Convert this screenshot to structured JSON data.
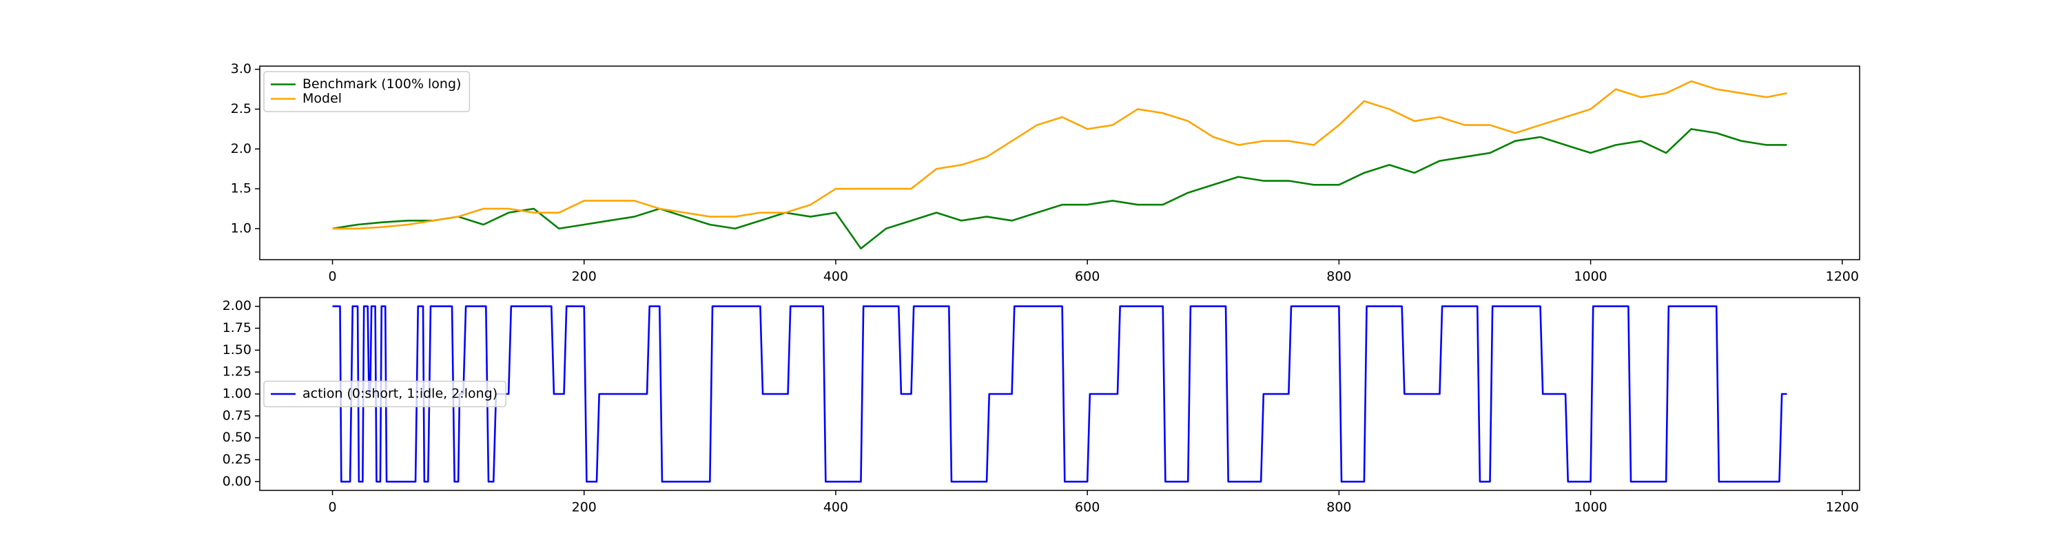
{
  "chart_data": [
    {
      "type": "line",
      "legend": "upper left",
      "x": [
        0,
        20,
        40,
        60,
        80,
        100,
        120,
        140,
        160,
        180,
        200,
        220,
        240,
        260,
        280,
        300,
        320,
        340,
        360,
        380,
        400,
        420,
        440,
        460,
        480,
        500,
        520,
        540,
        560,
        580,
        600,
        620,
        640,
        660,
        680,
        700,
        720,
        740,
        760,
        780,
        800,
        820,
        840,
        860,
        880,
        900,
        920,
        940,
        960,
        980,
        1000,
        1020,
        1040,
        1060,
        1080,
        1100,
        1120,
        1140,
        1156
      ],
      "series": [
        {
          "name": "Benchmark (100% long)",
          "color": "#008000",
          "values": [
            1.0,
            1.05,
            1.08,
            1.1,
            1.1,
            1.15,
            1.05,
            1.2,
            1.25,
            1.0,
            1.05,
            1.1,
            1.15,
            1.25,
            1.15,
            1.05,
            1.0,
            1.1,
            1.2,
            1.15,
            1.2,
            0.75,
            1.0,
            1.1,
            1.2,
            1.1,
            1.15,
            1.1,
            1.2,
            1.3,
            1.3,
            1.35,
            1.3,
            1.3,
            1.45,
            1.55,
            1.65,
            1.6,
            1.6,
            1.55,
            1.55,
            1.7,
            1.8,
            1.7,
            1.85,
            1.9,
            1.95,
            2.1,
            2.15,
            2.05,
            1.95,
            2.05,
            2.1,
            1.95,
            2.25,
            2.2,
            2.1,
            2.05,
            2.05
          ]
        },
        {
          "name": "Model",
          "color": "#ffa500",
          "values": [
            1.0,
            1.0,
            1.02,
            1.05,
            1.1,
            1.15,
            1.25,
            1.25,
            1.2,
            1.2,
            1.35,
            1.35,
            1.35,
            1.25,
            1.2,
            1.15,
            1.15,
            1.2,
            1.2,
            1.3,
            1.5,
            1.5,
            1.5,
            1.5,
            1.75,
            1.8,
            1.9,
            2.1,
            2.3,
            2.4,
            2.25,
            2.3,
            2.5,
            2.45,
            2.35,
            2.15,
            2.05,
            2.1,
            2.1,
            2.05,
            2.3,
            2.6,
            2.5,
            2.35,
            2.4,
            2.3,
            2.3,
            2.2,
            2.3,
            2.4,
            2.5,
            2.75,
            2.65,
            2.7,
            2.85,
            2.75,
            2.7,
            2.65,
            2.7
          ]
        }
      ],
      "xlim": [
        -57.8,
        1213.8
      ],
      "xticks": [
        0,
        200,
        400,
        600,
        800,
        1000,
        1200
      ],
      "ylim": [
        0.61,
        3.04
      ],
      "yticks": [
        {
          "value": 1,
          "label": "1.0"
        },
        1.5,
        {
          "value": 2,
          "label": "2.0"
        },
        2.5,
        {
          "value": 3,
          "label": "3.0"
        }
      ]
    },
    {
      "type": "line",
      "legend": "center left",
      "x": [
        0,
        6,
        7,
        14,
        16,
        20,
        21,
        24,
        25,
        28,
        29,
        30,
        31,
        34,
        35,
        38,
        39,
        42,
        43,
        66,
        68,
        72,
        73,
        76,
        78,
        95,
        97,
        100,
        101,
        104,
        106,
        122,
        124,
        128,
        130,
        140,
        142,
        174,
        176,
        184,
        186,
        200,
        202,
        210,
        212,
        250,
        252,
        260,
        262,
        300,
        302,
        340,
        342,
        362,
        364,
        390,
        392,
        420,
        422,
        450,
        452,
        460,
        462,
        490,
        492,
        520,
        522,
        540,
        542,
        580,
        582,
        600,
        602,
        624,
        626,
        660,
        662,
        680,
        682,
        710,
        712,
        738,
        740,
        760,
        762,
        800,
        802,
        820,
        822,
        850,
        852,
        880,
        882,
        910,
        912,
        920,
        922,
        960,
        962,
        980,
        982,
        1000,
        1002,
        1030,
        1032,
        1060,
        1062,
        1100,
        1102,
        1150,
        1152,
        1156
      ],
      "series": [
        {
          "name": "action (0:short, 1:idle, 2:long)",
          "color": "#0000ff",
          "values": [
            2,
            2,
            0,
            0,
            2,
            2,
            0,
            0,
            2,
            2,
            1,
            1,
            2,
            2,
            0,
            0,
            2,
            2,
            0,
            0,
            2,
            2,
            0,
            0,
            2,
            2,
            0,
            0,
            1,
            1,
            2,
            2,
            0,
            0,
            1,
            1,
            2,
            2,
            1,
            1,
            2,
            2,
            0,
            0,
            1,
            1,
            2,
            2,
            0,
            0,
            2,
            2,
            1,
            1,
            2,
            2,
            0,
            0,
            2,
            2,
            1,
            1,
            2,
            2,
            0,
            0,
            1,
            1,
            2,
            2,
            0,
            0,
            1,
            1,
            2,
            2,
            0,
            0,
            2,
            2,
            0,
            0,
            1,
            1,
            2,
            2,
            0,
            0,
            2,
            2,
            1,
            1,
            2,
            2,
            0,
            0,
            2,
            2,
            1,
            1,
            0,
            0,
            2,
            2,
            0,
            0,
            2,
            2,
            0,
            0,
            1,
            1
          ]
        }
      ],
      "xlim": [
        -57.8,
        1213.8
      ],
      "xticks": [
        0,
        200,
        400,
        600,
        800,
        1000,
        1200
      ],
      "ylim": [
        -0.1,
        2.1
      ],
      "yticks": [
        {
          "value": 0,
          "label": "0.00"
        },
        0.25,
        {
          "value": 0.5,
          "label": "0.50"
        },
        0.75,
        {
          "value": 1,
          "label": "1.00"
        },
        1.25,
        {
          "value": 1.5,
          "label": "1.50"
        },
        1.75,
        {
          "value": 2,
          "label": "2.00"
        }
      ]
    }
  ]
}
